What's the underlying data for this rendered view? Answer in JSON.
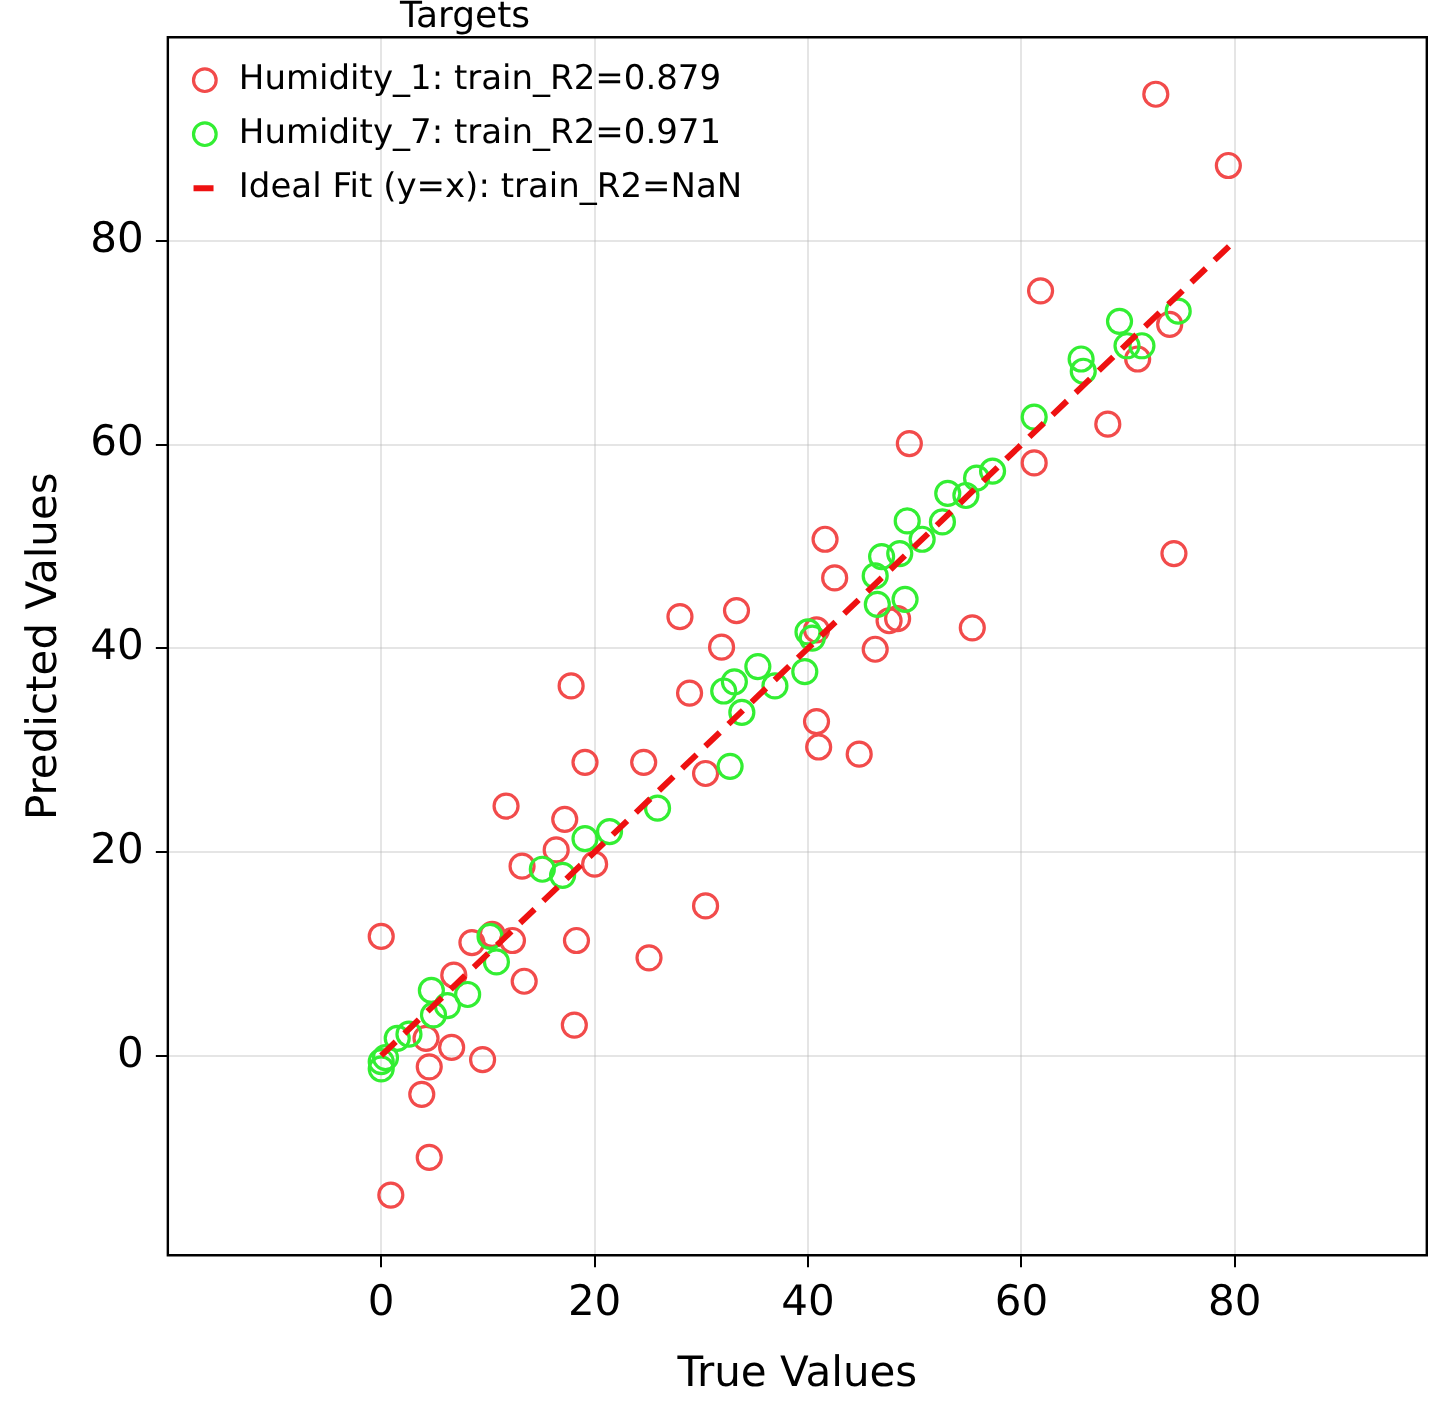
{
  "chart_data": {
    "type": "scatter",
    "xlabel": "True Values",
    "ylabel": "Predicted Values",
    "legend_title": "Targets",
    "legend": "top left",
    "grid": true,
    "marker": "circle",
    "xlim": [
      -20,
      98
    ],
    "ylim": [
      -19.6,
      100
    ],
    "xticks": [
      0,
      20,
      40,
      60,
      80
    ],
    "yticks": [
      0,
      20,
      40,
      60,
      80
    ],
    "series": [
      {
        "name": "Humidity_1: train_R2=0.879",
        "color": "#f24b4b",
        "x": [
          17.8,
          28.9,
          19.1,
          24.6,
          30.4,
          40.8,
          41.0,
          44.8,
          11.7,
          17.2,
          16.4,
          13.2,
          20.0,
          0,
          12.3,
          18.3,
          25.1,
          30.4,
          8.5,
          10.4,
          6.8,
          13.4,
          18.1,
          4.2,
          6.6,
          4.5,
          9.5,
          3.8,
          4.5,
          0.9,
          72.6,
          79.4,
          61.8,
          73.9,
          70.9,
          68.1,
          61.2,
          49.5,
          74.3,
          41.6,
          42.5,
          47.6,
          48.4,
          55.4,
          46.3,
          40.8,
          28.0,
          33.3,
          31.9
        ],
        "values": [
          36.3,
          35.6,
          28.8,
          28.8,
          27.7,
          32.8,
          30.3,
          29.6,
          24.5,
          23.2,
          20.2,
          18.6,
          18.8,
          11.7,
          11.3,
          11.3,
          9.6,
          14.7,
          11.1,
          11.9,
          7.9,
          7.3,
          3.0,
          1.7,
          0.8,
          -1.1,
          -0.4,
          -3.8,
          -10.0,
          -13.7,
          94.4,
          87.4,
          75.1,
          71.8,
          68.4,
          62.0,
          58.2,
          60.1,
          49.3,
          50.7,
          46.9,
          42.7,
          42.9,
          42.0,
          39.9,
          41.8,
          43.1,
          43.7,
          40.1
        ]
      },
      {
        "name": "Humidity_7: train_R2=0.971",
        "color": "#33ee33",
        "x": [
          0,
          0,
          0.4,
          1.5,
          2.6,
          4.9,
          6.2,
          4.7,
          8.1,
          10.8,
          10.2,
          15.1,
          17.0,
          19.1,
          21.4,
          25.9,
          32.7,
          32.1,
          33.1,
          33.8,
          35.3,
          36.9,
          39.7,
          40.0,
          40.4,
          46.5,
          49.1,
          46.3,
          46.9,
          48.6,
          49.3,
          50.7,
          52.6,
          53.1,
          54.8,
          55.8,
          57.3,
          61.2,
          65.6,
          65.8,
          69.2,
          69.9,
          71.3,
          74.7
        ],
        "values": [
          -1.3,
          -0.6,
          -0.2,
          1.7,
          2.1,
          4.0,
          4.9,
          6.4,
          6.0,
          9.2,
          11.7,
          18.3,
          17.7,
          21.3,
          22.0,
          24.3,
          28.4,
          35.8,
          36.7,
          33.7,
          38.2,
          36.3,
          37.7,
          41.6,
          41.0,
          44.3,
          44.8,
          47.1,
          49.0,
          49.3,
          52.5,
          50.7,
          52.4,
          55.2,
          55.0,
          56.7,
          57.4,
          62.7,
          68.4,
          67.2,
          72.1,
          69.7,
          69.7,
          73.1
        ]
      },
      {
        "name": "Ideal Fit (y=x): train_R2=NaN",
        "type": "line",
        "color": "#ee1111",
        "line_style": "dashed",
        "marker": "none",
        "x": [
          0,
          80
        ],
        "values": [
          0,
          80
        ]
      }
    ]
  }
}
